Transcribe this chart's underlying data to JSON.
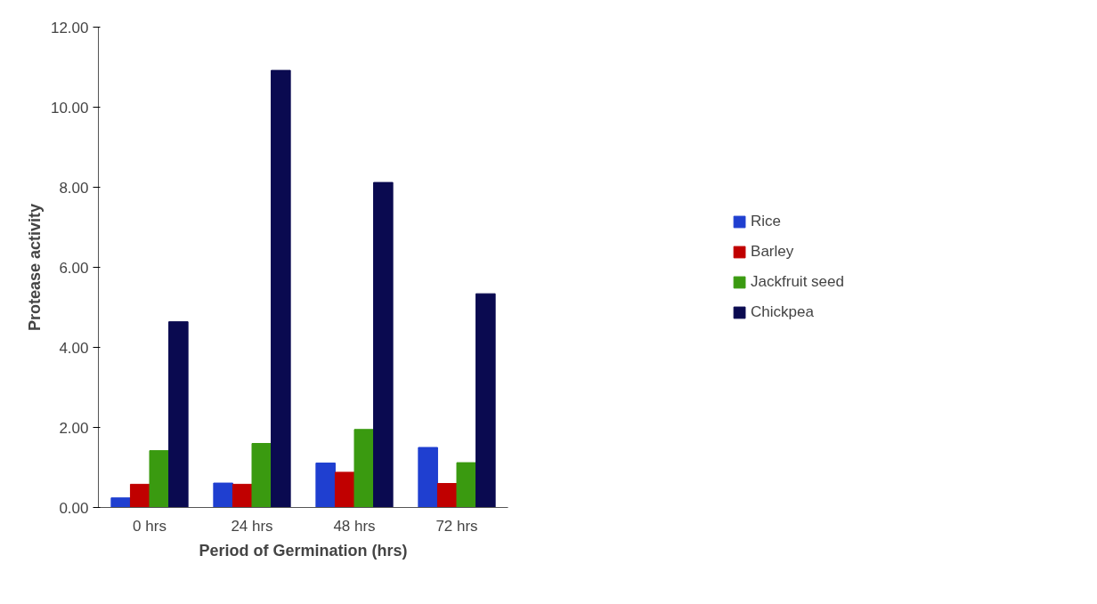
{
  "chart_data": {
    "type": "bar",
    "xlabel": "Period of Germination (hrs)",
    "ylabel": "Protease activity",
    "categories": [
      "0 hrs",
      "24 hrs",
      "48 hrs",
      "72 hrs"
    ],
    "series": [
      {
        "name": "Rice",
        "color": "#1f3fd0",
        "values": [
          0.24,
          0.61,
          1.11,
          1.5
        ]
      },
      {
        "name": "Barley",
        "color": "#c00000",
        "values": [
          0.58,
          0.58,
          0.88,
          0.6
        ]
      },
      {
        "name": "Jackfruit seed",
        "color": "#3a9a10",
        "values": [
          1.42,
          1.6,
          1.95,
          1.12
        ]
      },
      {
        "name": "Chickpea",
        "color": "#0a0a50",
        "values": [
          4.64,
          10.92,
          8.12,
          5.34
        ]
      }
    ],
    "ylim": [
      0,
      12
    ],
    "yticks": [
      {
        "value": 0,
        "label": "0.00"
      },
      {
        "value": 2,
        "label": "2.00"
      },
      {
        "value": 4,
        "label": "4.00"
      },
      {
        "value": 6,
        "label": "6.00"
      },
      {
        "value": 8,
        "label": "8.00"
      },
      {
        "value": 10,
        "label": "10.00"
      },
      {
        "value": 12,
        "label": "12.00"
      }
    ],
    "grid": false,
    "legend": "right"
  }
}
